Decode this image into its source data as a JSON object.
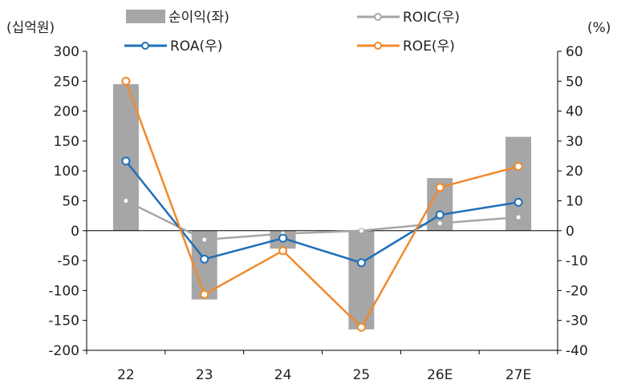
{
  "chart_data": {
    "type": "bar",
    "categories": [
      "22",
      "23",
      "24",
      "25",
      "26E",
      "27E"
    ],
    "left_axis": {
      "unit_label": "(십억원)",
      "range": [
        -200,
        300
      ],
      "ticks": [
        "300",
        "250",
        "200",
        "150",
        "100",
        "50",
        "0",
        "-50",
        "-100",
        "-150",
        "-200"
      ]
    },
    "right_axis": {
      "unit_label": "(%)",
      "range": [
        -40,
        60
      ],
      "ticks": [
        "60",
        "50",
        "40",
        "30",
        "20",
        "10",
        "0",
        "-10",
        "-20",
        "-30",
        "-40"
      ]
    },
    "series": [
      {
        "name": "순이익(좌)",
        "kind": "bar",
        "axis": "left",
        "color": "#a6a6a6",
        "values": [
          245,
          -115,
          -30,
          -165,
          88,
          157
        ]
      },
      {
        "name": "ROIC(우)",
        "kind": "line",
        "axis": "right",
        "color": "#a6a6a6",
        "values": [
          10,
          -3,
          -1,
          0,
          2.5,
          4.5
        ]
      },
      {
        "name": "ROA(우)",
        "kind": "line",
        "axis": "right",
        "color": "#1f6fb8",
        "values": [
          23.3,
          -9.5,
          -2.5,
          -10.7,
          5.3,
          9.5
        ]
      },
      {
        "name": "ROE(우)",
        "kind": "line",
        "axis": "right",
        "color": "#f08a2c",
        "values": [
          50,
          -21.3,
          -6.7,
          -32.3,
          14.5,
          21.5
        ]
      }
    ],
    "grid": false,
    "legend": "top"
  }
}
